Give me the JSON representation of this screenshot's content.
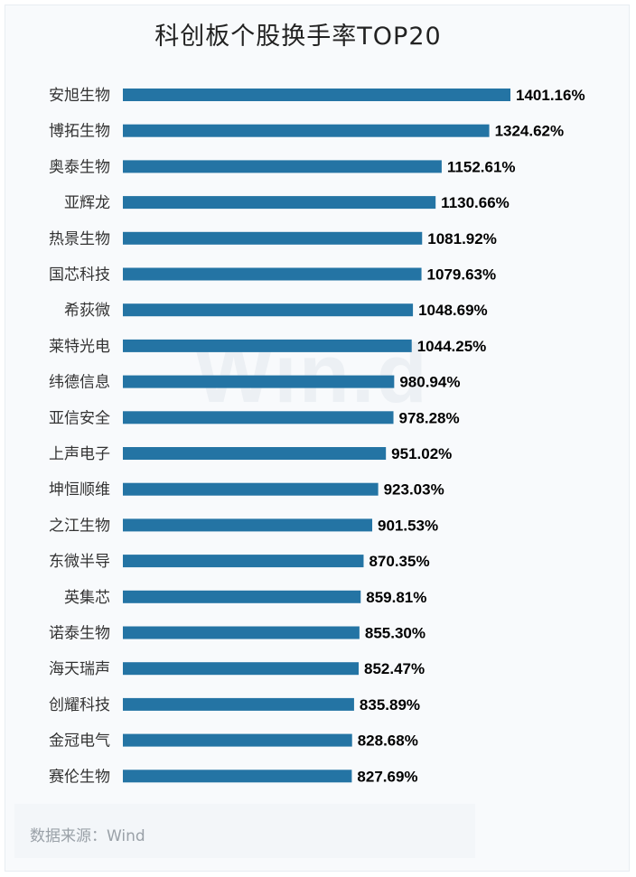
{
  "title": "科创板个股换手率TOP20",
  "watermark": "Win.d",
  "source": "数据来源：Wind",
  "colors": {
    "bar": "#2474a4"
  },
  "chart_data": {
    "type": "bar",
    "orientation": "horizontal",
    "title": "科创板个股换手率TOP20",
    "xlabel": "",
    "ylabel": "",
    "xlim": [
      0,
      1450
    ],
    "grid": false,
    "categories": [
      "安旭生物",
      "博拓生物",
      "奥泰生物",
      "亚辉龙",
      "热景生物",
      "国芯科技",
      "希荻微",
      "莱特光电",
      "纬德信息",
      "亚信安全",
      "上声电子",
      "坤恒顺维",
      "之江生物",
      "东微半导",
      "英集芯",
      "诺泰生物",
      "海天瑞声",
      "创耀科技",
      "金冠电气",
      "赛伦生物"
    ],
    "values": [
      1401.16,
      1324.62,
      1152.61,
      1130.66,
      1081.92,
      1079.63,
      1048.69,
      1044.25,
      980.94,
      978.28,
      951.02,
      923.03,
      901.53,
      870.35,
      859.81,
      855.3,
      852.47,
      835.89,
      828.68,
      827.69
    ],
    "labels": [
      "1401.16%",
      "1324.62%",
      "1152.61%",
      "1130.66%",
      "1081.92%",
      "1079.63%",
      "1048.69%",
      "1044.25%",
      "980.94%",
      "978.28%",
      "951.02%",
      "923.03%",
      "901.53%",
      "870.35%",
      "859.81%",
      "855.30%",
      "852.47%",
      "835.89%",
      "828.68%",
      "827.69%"
    ]
  }
}
